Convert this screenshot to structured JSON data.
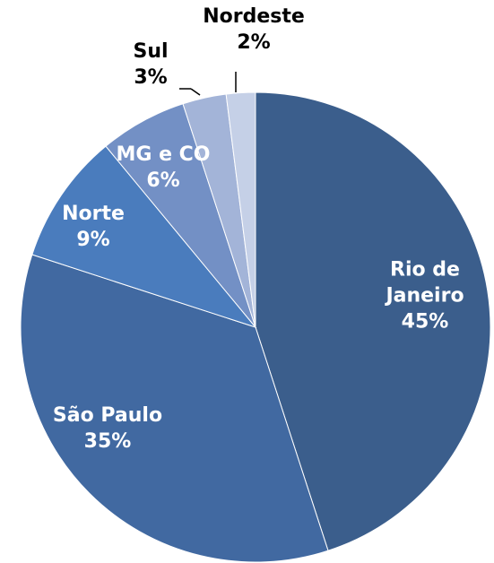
{
  "chart_data": {
    "type": "pie",
    "categories": [
      "Rio de Janeiro",
      "São Paulo",
      "Norte",
      "MG e CO",
      "Sul",
      "Nordeste"
    ],
    "values": [
      45,
      35,
      9,
      6,
      3,
      2
    ],
    "value_labels": [
      "45%",
      "35%",
      "9%",
      "6%",
      "3%",
      "2%"
    ],
    "colors": [
      "#3b5e8c",
      "#4169a1",
      "#4a7cbd",
      "#7390c5",
      "#a3b4d8",
      "#c5d0e7"
    ]
  }
}
